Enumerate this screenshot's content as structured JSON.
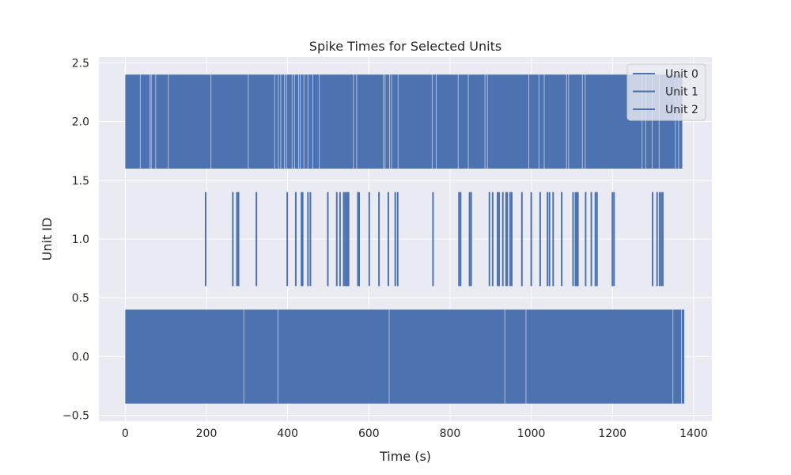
{
  "chart_data": {
    "type": "eventplot",
    "title": "Spike Times for Selected Units",
    "xlabel": "Time (s)",
    "ylabel": "Unit ID",
    "xlim": [
      -65,
      1445
    ],
    "ylim": [
      -0.55,
      2.55
    ],
    "xticks": [
      0,
      200,
      400,
      600,
      800,
      1000,
      1200,
      1400
    ],
    "xtick_labels": [
      "0",
      "200",
      "400",
      "600",
      "800",
      "1000",
      "1200",
      "1400"
    ],
    "yticks": [
      -0.5,
      0.0,
      0.5,
      1.0,
      1.5,
      2.0,
      2.5
    ],
    "ytick_labels": [
      "−0.5",
      "0.0",
      "0.5",
      "1.0",
      "1.5",
      "2.0",
      "2.5"
    ],
    "grid": true,
    "legend_position": "top-right",
    "line_length": 0.8,
    "colors": {
      "series": "#4c72b0",
      "plot_bg": "#eaeaf2",
      "grid": "#ffffff",
      "text": "#262626"
    },
    "series": [
      {
        "name": "Unit 0",
        "offset": 0,
        "range": [
          0,
          1377
        ],
        "gaps": [
          292,
          376,
          650,
          935,
          987,
          1349,
          1370
        ]
      },
      {
        "name": "Unit 1",
        "offset": 1,
        "spike_times": [
          198,
          265,
          275,
          279,
          323,
          399,
          420,
          434,
          437,
          450,
          456,
          499,
          521,
          529,
          538,
          542,
          546,
          548,
          550,
          573,
          576,
          601,
          625,
          648,
          665,
          671,
          758,
          822,
          826,
          848,
          852,
          897,
          905,
          917,
          921,
          930,
          938,
          941,
          948,
          952,
          977,
          1000,
          1022,
          1040,
          1045,
          1054,
          1075,
          1103,
          1109,
          1112,
          1115,
          1134,
          1148,
          1158,
          1162,
          1200,
          1204,
          1299,
          1310,
          1316,
          1320,
          1324
        ]
      },
      {
        "name": "Unit 2",
        "offset": 2,
        "range": [
          0,
          1372
        ],
        "gaps": [
          37,
          61,
          64,
          75,
          106,
          211,
          303,
          368,
          377,
          383,
          392,
          397,
          411,
          417,
          427,
          431,
          440,
          450,
          462,
          478,
          562,
          570,
          636,
          640,
          651,
          656,
          672,
          756,
          766,
          820,
          845,
          886,
          892,
          994,
          1019,
          1032,
          1087,
          1092,
          1126,
          1133,
          1273,
          1282,
          1298,
          1315,
          1355,
          1363
        ]
      }
    ]
  }
}
